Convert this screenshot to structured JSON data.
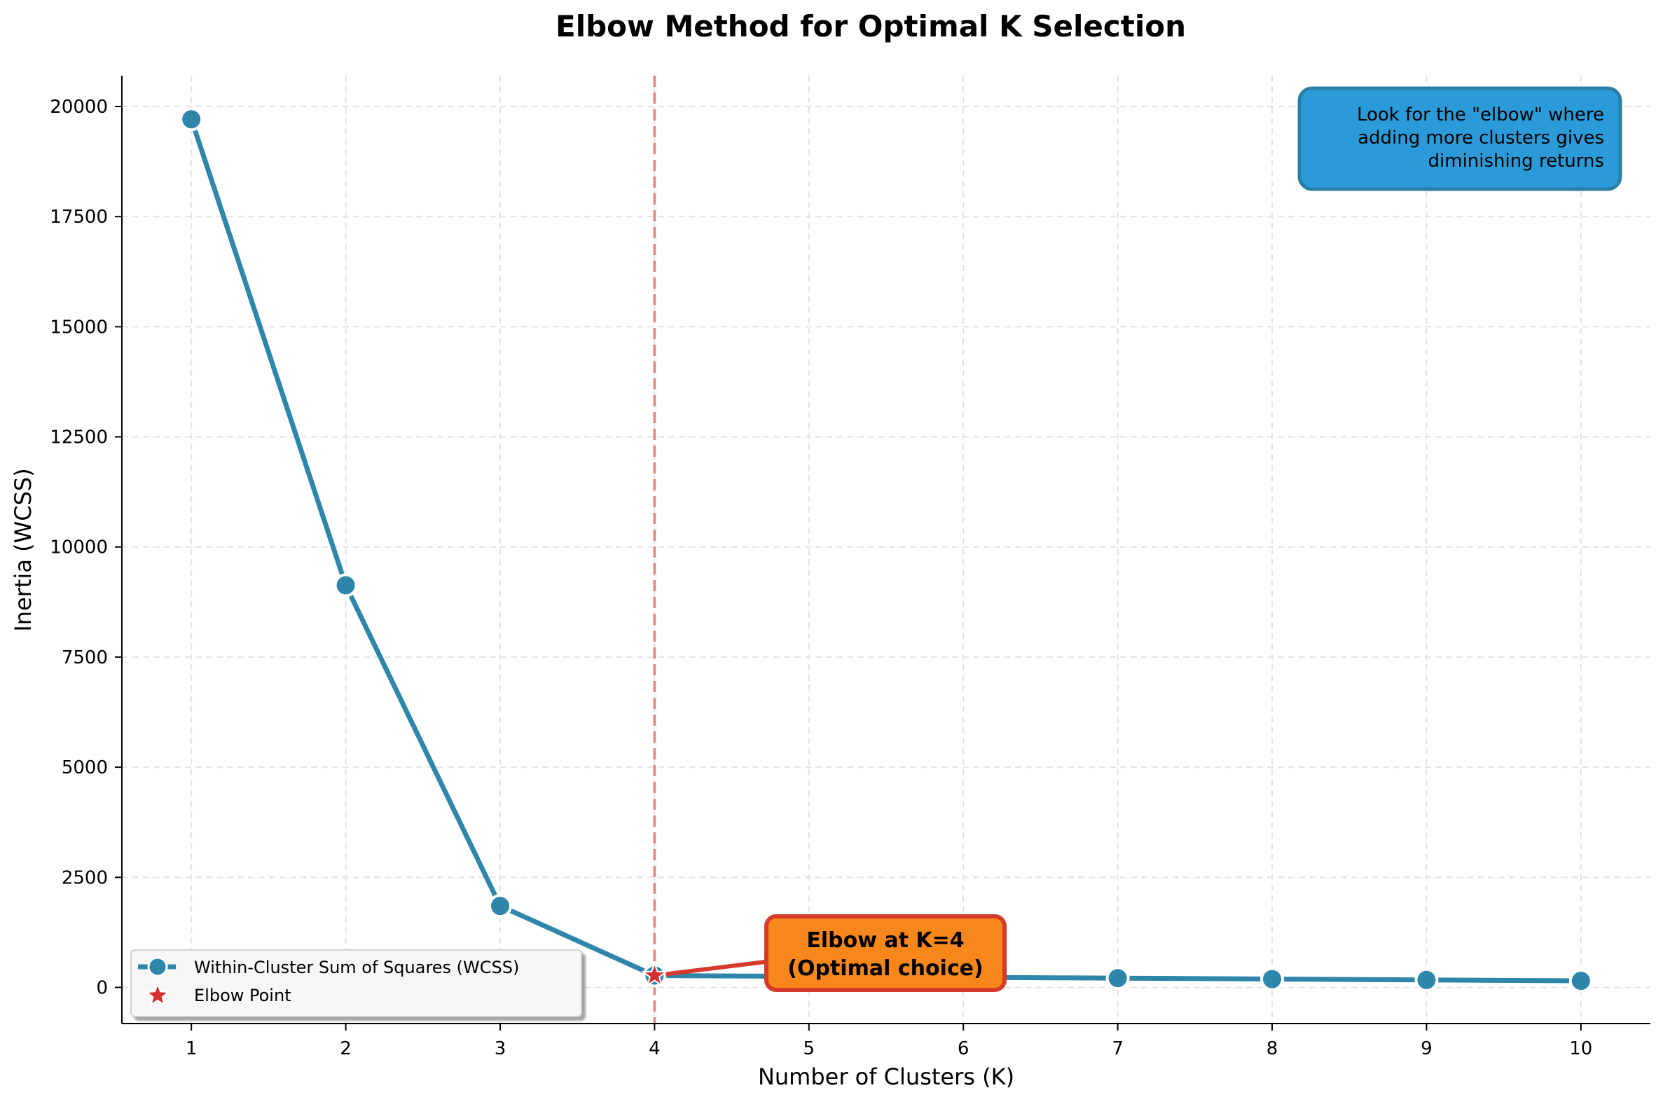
{
  "chart_data": {
    "type": "line",
    "title": "Elbow Method for Optimal K Selection",
    "xlabel": "Number of Clusters (K)",
    "ylabel": "Inertia (WCSS)",
    "x": [
      1,
      2,
      3,
      4,
      5,
      6,
      7,
      8,
      9,
      10
    ],
    "xlim": [
      0.55,
      10.45
    ],
    "ylim": [
      -820,
      20700
    ],
    "x_ticks": [
      "1",
      "2",
      "3",
      "4",
      "5",
      "6",
      "7",
      "8",
      "9",
      "10"
    ],
    "y_ticks": [
      0,
      2500,
      5000,
      7500,
      10000,
      12500,
      15000,
      17500,
      20000
    ],
    "y_tick_labels": [
      "0",
      "2500",
      "5000",
      "7500",
      "10000",
      "12500",
      "15000",
      "17500",
      "20000"
    ],
    "grid": true,
    "series": [
      {
        "name": "Within-Cluster Sum of Squares (WCSS)",
        "color": "#2e86ab",
        "values": [
          19710,
          9130,
          1850,
          270,
          250,
          230,
          210,
          190,
          170,
          150
        ]
      }
    ],
    "elbow": {
      "name": "Elbow Point",
      "x": 4,
      "y": 270,
      "color": "#d62f2f",
      "vline_color": "#e88a8a"
    },
    "annotation": {
      "line1": "Elbow at K=4",
      "line2": "(Optimal choice)",
      "box_color": "#f7871a",
      "border_color": "#d63a2a"
    },
    "info_box": {
      "line1": "Look for the \"elbow\" where",
      "line2": "adding more clusters gives",
      "line3": "diminishing returns",
      "box_color": "#2b9ad8",
      "border_color": "#2a7fa8"
    },
    "legend": {
      "placement": "lower-left",
      "items": [
        "Within-Cluster Sum of Squares (WCSS)",
        "Elbow Point"
      ]
    }
  }
}
